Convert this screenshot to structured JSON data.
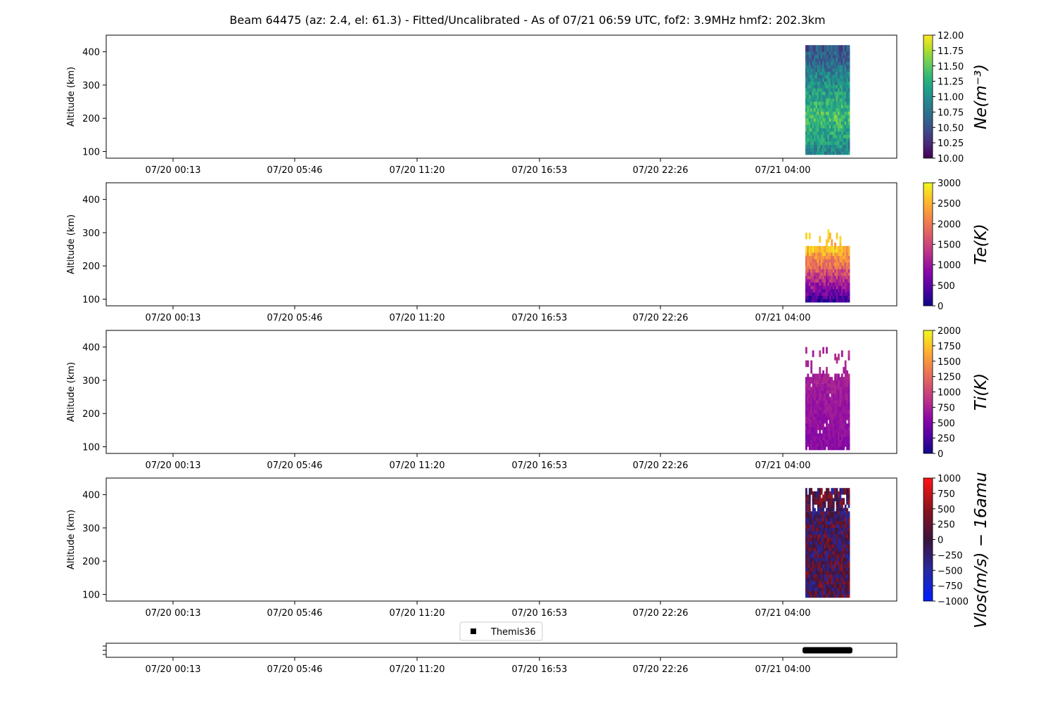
{
  "title": "Beam 64475 (az: 2.4, el: 61.3) - Fitted/Uncalibrated - As of 07/21 06:59 UTC, fof2: 3.9MHz  hmf2: 202.3km",
  "colors": {
    "legend_marker": "#000000",
    "vlos_neg": "#1a1aff",
    "vlos_pos": "#ff0000"
  },
  "chart_data": [
    {
      "type": "heatmap",
      "id": "ne",
      "ylabel": "Altitude (km)",
      "colorbar_label": "Ne(m⁻³)",
      "colormap": "viridis",
      "ylim": [
        80,
        450
      ],
      "yticks": [
        "100",
        "200",
        "300",
        "400"
      ],
      "xticks": [
        "07/20 00:13",
        "07/20 05:46",
        "07/20 11:20",
        "07/20 16:53",
        "07/20 22:26",
        "07/21 04:00"
      ],
      "x_data_start": "07/21 04:55",
      "x_data_end": "07/21 06:59",
      "alt_range": [
        100,
        420
      ],
      "value_range": [
        10.0,
        12.0
      ],
      "colorbar_ticks": [
        "10.00",
        "10.25",
        "10.50",
        "10.75",
        "11.00",
        "11.25",
        "11.50",
        "11.75",
        "12.00"
      ]
    },
    {
      "type": "heatmap",
      "id": "te",
      "ylabel": "Altitude (km)",
      "colorbar_label": "Te(K)",
      "colormap": "plasma",
      "ylim": [
        80,
        450
      ],
      "yticks": [
        "100",
        "200",
        "300",
        "400"
      ],
      "xticks": [
        "07/20 00:13",
        "07/20 05:46",
        "07/20 11:20",
        "07/20 16:53",
        "07/20 22:26",
        "07/21 04:00"
      ],
      "x_data_start": "07/21 04:55",
      "x_data_end": "07/21 06:59",
      "alt_range": [
        100,
        310
      ],
      "value_range": [
        0,
        3000
      ],
      "colorbar_ticks": [
        "0",
        "500",
        "1000",
        "1500",
        "2000",
        "2500",
        "3000"
      ]
    },
    {
      "type": "heatmap",
      "id": "ti",
      "ylabel": "Altitude (km)",
      "colorbar_label": "Ti(K)",
      "colormap": "plasma",
      "ylim": [
        80,
        450
      ],
      "yticks": [
        "100",
        "200",
        "300",
        "400"
      ],
      "xticks": [
        "07/20 00:13",
        "07/20 05:46",
        "07/20 11:20",
        "07/20 16:53",
        "07/20 22:26",
        "07/21 04:00"
      ],
      "x_data_start": "07/21 04:55",
      "x_data_end": "07/21 06:59",
      "alt_range": [
        100,
        400
      ],
      "value_range": [
        0,
        2000
      ],
      "colorbar_ticks": [
        "0",
        "250",
        "500",
        "750",
        "1000",
        "1250",
        "1500",
        "1750",
        "2000"
      ]
    },
    {
      "type": "heatmap",
      "id": "vlos",
      "ylabel": "Altitude (km)",
      "colorbar_label": "Vlos(m/s) − 16amu",
      "colormap": "bwr-dark",
      "ylim": [
        80,
        450
      ],
      "yticks": [
        "100",
        "200",
        "300",
        "400"
      ],
      "xticks": [
        "07/20 00:13",
        "07/20 05:46",
        "07/20 11:20",
        "07/20 16:53",
        "07/20 22:26",
        "07/21 04:00"
      ],
      "x_data_start": "07/21 04:55",
      "x_data_end": "07/21 06:59",
      "alt_range": [
        100,
        420
      ],
      "value_range": [
        -1000,
        1000
      ],
      "colorbar_ticks": [
        "−1000",
        "−750",
        "−500",
        "−250",
        "0",
        "250",
        "500",
        "750",
        "1000"
      ]
    },
    {
      "type": "scatter",
      "id": "themis",
      "legend": [
        "Themis36"
      ],
      "series": [
        {
          "name": "Themis36",
          "x_start": "07/21 04:55",
          "x_end": "07/21 06:59"
        }
      ],
      "xticks": [
        "07/20 00:13",
        "07/20 05:46",
        "07/20 11:20",
        "07/20 16:53",
        "07/20 22:26",
        "07/21 04:00"
      ]
    }
  ]
}
